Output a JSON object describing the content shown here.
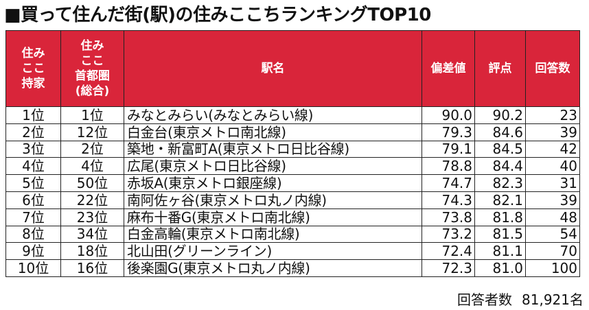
{
  "title": "■買って住んだ街(駅)の住みここちランキングTOP10",
  "headers": {
    "col1": [
      "住み",
      "ここ",
      "持家"
    ],
    "col2": [
      "住み",
      "ここ",
      "首都圏",
      "(総合)"
    ],
    "station": "駅名",
    "deviation": "偏差値",
    "score": "評点",
    "responses": "回答数"
  },
  "rows": [
    {
      "rank": "1位",
      "overall": "1位",
      "station": "みなとみらい(みなとみらい線)",
      "deviation": "90.0",
      "score": "90.2",
      "responses": "23"
    },
    {
      "rank": "2位",
      "overall": "12位",
      "station": "白金台(東京メトロ南北線)",
      "deviation": "79.3",
      "score": "84.6",
      "responses": "39"
    },
    {
      "rank": "3位",
      "overall": "2位",
      "station": "築地・新富町A(東京メトロ日比谷線)",
      "deviation": "79.1",
      "score": "84.5",
      "responses": "42"
    },
    {
      "rank": "4位",
      "overall": "4位",
      "station": "広尾(東京メトロ日比谷線)",
      "deviation": "78.8",
      "score": "84.4",
      "responses": "40"
    },
    {
      "rank": "5位",
      "overall": "50位",
      "station": "赤坂A(東京メトロ銀座線)",
      "deviation": "74.7",
      "score": "82.3",
      "responses": "31"
    },
    {
      "rank": "6位",
      "overall": "22位",
      "station": "南阿佐ヶ谷(東京メトロ丸ノ内線)",
      "deviation": "74.3",
      "score": "82.1",
      "responses": "39"
    },
    {
      "rank": "7位",
      "overall": "23位",
      "station": "麻布十番G(東京メトロ南北線)",
      "deviation": "73.8",
      "score": "81.8",
      "responses": "48"
    },
    {
      "rank": "8位",
      "overall": "34位",
      "station": "白金高輪(東京メトロ南北線)",
      "deviation": "73.2",
      "score": "81.5",
      "responses": "54"
    },
    {
      "rank": "9位",
      "overall": "18位",
      "station": "北山田(グリーンライン)",
      "deviation": "72.4",
      "score": "81.1",
      "responses": "70"
    },
    {
      "rank": "10位",
      "overall": "16位",
      "station": "後楽園G(東京メトロ丸ノ内線)",
      "deviation": "72.3",
      "score": "81.0",
      "responses": "100"
    }
  ],
  "footer": {
    "label": "回答者数",
    "count": "81,921名"
  },
  "colors": {
    "header_bg": "#d9253a",
    "header_text": "#ffffff",
    "border": "#222222"
  }
}
